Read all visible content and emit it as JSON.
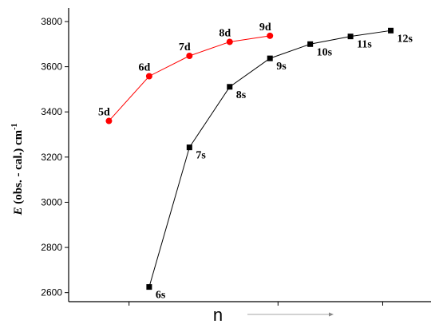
{
  "chart_data": {
    "type": "line",
    "xlabel": "n",
    "ylabel": {
      "var": "E",
      "text": " (obs. - cal.) cm",
      "sup": "-1"
    },
    "ylim": [
      2560,
      3860
    ],
    "yticks": [
      2600,
      2800,
      3000,
      3200,
      3400,
      3600,
      3800
    ],
    "xlim": [
      4.0,
      13.0
    ],
    "grid": false,
    "series": [
      {
        "marker": "square",
        "color": "#000000",
        "x": [
          6,
          7,
          8,
          9,
          10,
          11,
          12
        ],
        "values": [
          2625,
          3243,
          3511,
          3637,
          3700,
          3734,
          3760
        ],
        "labels": [
          "6s",
          "7s",
          "8s",
          "9s",
          "10s",
          "11s",
          "12s"
        ]
      },
      {
        "marker": "circle",
        "color": "#ff0000",
        "x": [
          5,
          6,
          7,
          8,
          9
        ],
        "values": [
          3360,
          3558,
          3648,
          3710,
          3737
        ],
        "labels": [
          "5d",
          "6d",
          "7d",
          "8d",
          "9d"
        ]
      }
    ]
  }
}
